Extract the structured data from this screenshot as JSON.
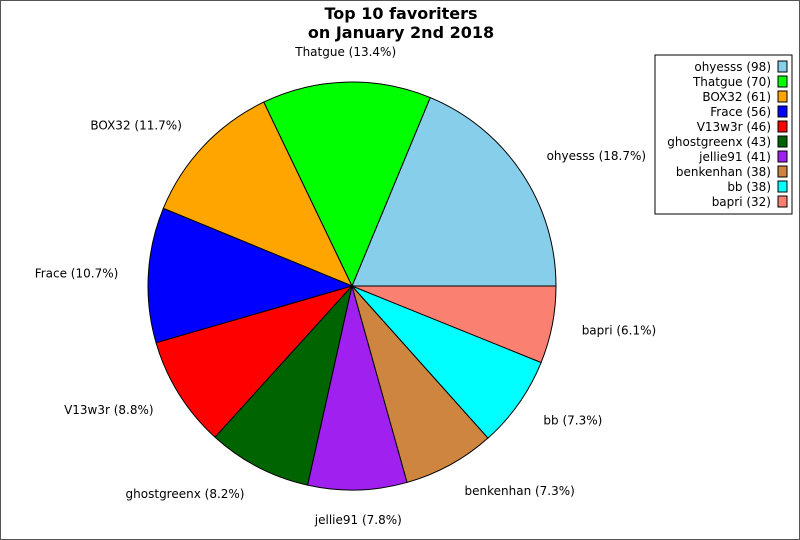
{
  "chart_data": {
    "type": "pie",
    "title": [
      "Top 10 favoriters",
      "on January 2nd 2018"
    ],
    "start_angle_deg": 0,
    "direction": "counterclockwise",
    "legend_position": "top-right",
    "slices": [
      {
        "name": "ohyesss",
        "value": 98,
        "percent": "18.7%",
        "color": "#87CEEB",
        "slice_label": "ohyesss (18.7%)",
        "legend_label": "ohyesss (98)"
      },
      {
        "name": "Thatgue",
        "value": 70,
        "percent": "13.4%",
        "color": "#00FF00",
        "slice_label": "Thatgue (13.4%)",
        "legend_label": "Thatgue (70)"
      },
      {
        "name": "BOX32",
        "value": 61,
        "percent": "11.7%",
        "color": "#FFA500",
        "slice_label": "BOX32 (11.7%)",
        "legend_label": "BOX32 (61)"
      },
      {
        "name": "Frace",
        "value": 56,
        "percent": "10.7%",
        "color": "#0000FF",
        "slice_label": "Frace (10.7%)",
        "legend_label": "Frace (56)"
      },
      {
        "name": "V13w3r",
        "value": 46,
        "percent": "8.8%",
        "color": "#FF0000",
        "slice_label": "V13w3r (8.8%)",
        "legend_label": "V13w3r (46)"
      },
      {
        "name": "ghostgreenx",
        "value": 43,
        "percent": "8.2%",
        "color": "#006400",
        "slice_label": "ghostgreenx (8.2%)",
        "legend_label": "ghostgreenx (43)"
      },
      {
        "name": "jellie91",
        "value": 41,
        "percent": "7.8%",
        "color": "#A020F0",
        "slice_label": "jellie91 (7.8%)",
        "legend_label": "jellie91 (41)"
      },
      {
        "name": "benkenhan",
        "value": 38,
        "percent": "7.3%",
        "color": "#CD853F",
        "slice_label": "benkenhan (7.3%)",
        "legend_label": "benkenhan (38)"
      },
      {
        "name": "bb",
        "value": 38,
        "percent": "7.3%",
        "color": "#00FFFF",
        "slice_label": "bb (7.3%)",
        "legend_label": "bb (38)"
      },
      {
        "name": "bapri",
        "value": 32,
        "percent": "6.1%",
        "color": "#FA8072",
        "slice_label": "bapri (6.1%)",
        "legend_label": "bapri (32)"
      }
    ]
  }
}
